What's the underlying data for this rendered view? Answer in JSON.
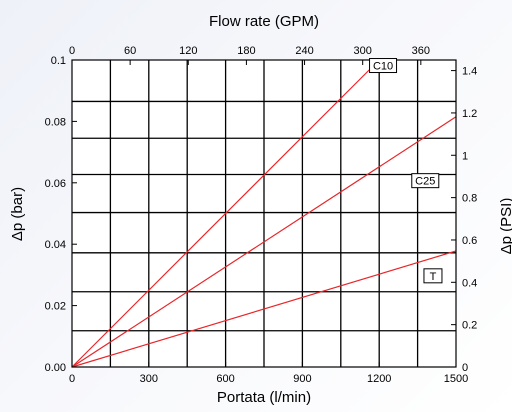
{
  "chart_data": {
    "type": "line",
    "title": "",
    "xlabel": "Portata (l/min)",
    "ylabel": "Δp (bar)",
    "x2label": "Flow rate (GPM)",
    "y2label": "Δp (PSI)",
    "xlim": [
      0,
      1500
    ],
    "ylim": [
      0,
      0.1
    ],
    "x2lim": [
      0,
      396.3
    ],
    "y2lim": [
      0,
      1.45
    ],
    "x_ticks": [
      0,
      300,
      600,
      900,
      1200,
      1500
    ],
    "x_tick_labels": [
      "0",
      "300",
      "600",
      "900",
      "1200",
      "1500"
    ],
    "y_ticks": [
      0,
      0.02,
      0.04,
      0.06,
      0.08,
      0.1
    ],
    "y_tick_labels": [
      "0.00",
      "0.02",
      "0.04",
      "0.06",
      "0.08",
      "0.1"
    ],
    "x2_ticks": [
      0,
      60,
      120,
      180,
      240,
      300,
      360
    ],
    "x2_tick_labels": [
      "0",
      "60",
      "120",
      "180",
      "240",
      "300",
      "360"
    ],
    "y2_ticks": [
      0,
      0.2,
      0.4,
      0.6,
      0.8,
      1,
      1.2,
      1.4
    ],
    "y2_tick_labels": [
      "0",
      "0.2",
      "0.4",
      "0.6",
      "0.8",
      "1",
      "1.2",
      "1.4"
    ],
    "grid_x": [
      150,
      300,
      450,
      600,
      750,
      900,
      1050,
      1200,
      1350
    ],
    "grid_y": [
      0.0118,
      0.0245,
      0.0372,
      0.0503,
      0.0627,
      0.0745,
      0.0865
    ],
    "grid": true,
    "series": [
      {
        "name": "C10",
        "x": [
          0,
          1200
        ],
        "y": [
          0,
          0.1
        ],
        "label_x": 1215,
        "label_y": 0.0982
      },
      {
        "name": "C25",
        "x": [
          0,
          1500
        ],
        "y": [
          0,
          0.0815
        ],
        "label_x": 1380,
        "label_y": 0.0607
      },
      {
        "name": "T",
        "x": [
          0,
          1500
        ],
        "y": [
          0,
          0.0378
        ],
        "label_x": 1410,
        "label_y": 0.0297
      }
    ],
    "line_color": "#e8262a"
  }
}
